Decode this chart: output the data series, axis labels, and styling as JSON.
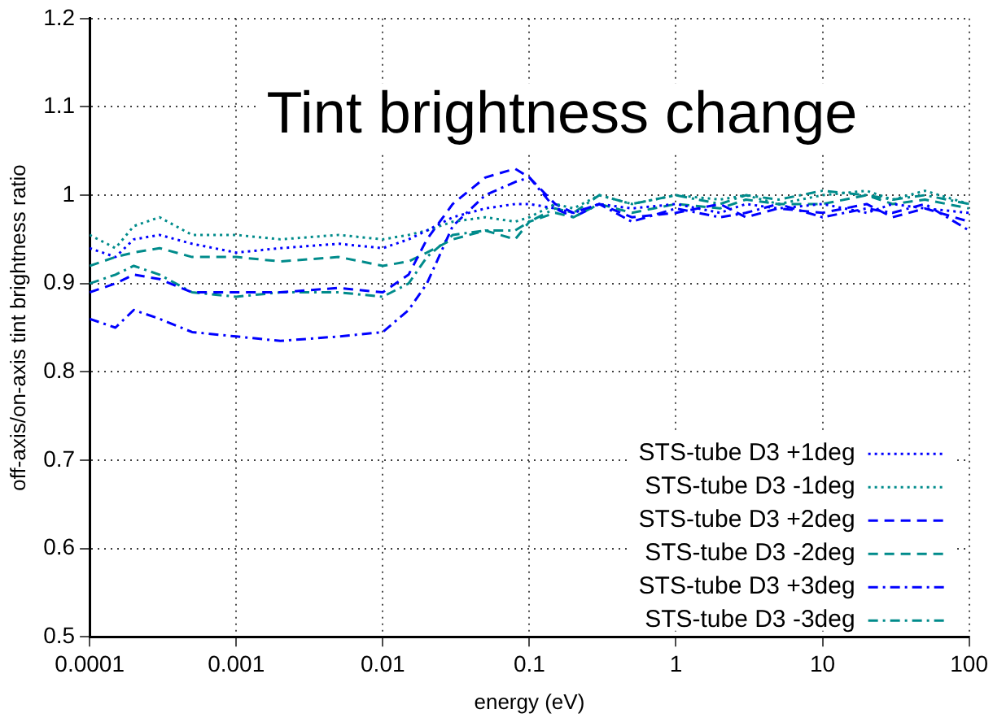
{
  "chart_data": {
    "type": "line",
    "title": "Tint brightness change",
    "xlabel": "energy (eV)",
    "ylabel": "off-axis/on-axis tint brightness ratio",
    "x": [
      0.0001,
      0.00015,
      0.0002,
      0.0003,
      0.0005,
      0.001,
      0.002,
      0.005,
      0.01,
      0.015,
      0.02,
      0.03,
      0.05,
      0.08,
      0.1,
      0.15,
      0.2,
      0.3,
      0.5,
      1,
      2,
      3,
      5,
      10,
      20,
      30,
      50,
      100
    ],
    "series": [
      {
        "name": "STS-tube D3 +1deg",
        "color": "#0000ff",
        "line_style": "dotted",
        "values": [
          0.94,
          0.93,
          0.95,
          0.955,
          0.945,
          0.935,
          0.94,
          0.945,
          0.94,
          0.95,
          0.96,
          0.975,
          0.985,
          0.99,
          0.99,
          0.985,
          0.98,
          0.99,
          0.985,
          0.99,
          0.98,
          0.99,
          0.985,
          0.99,
          0.98,
          0.99,
          0.985,
          0.98
        ]
      },
      {
        "name": "STS-tube D3 -1deg",
        "color": "#008b8b",
        "line_style": "dotted",
        "values": [
          0.955,
          0.94,
          0.965,
          0.975,
          0.955,
          0.955,
          0.95,
          0.955,
          0.95,
          0.955,
          0.96,
          0.97,
          0.975,
          0.97,
          0.975,
          0.99,
          0.985,
          1.0,
          0.99,
          1.0,
          0.995,
          1.0,
          0.99,
          1.0,
          1.005,
          0.995,
          1.005,
          0.99
        ]
      },
      {
        "name": "STS-tube D3 +2deg",
        "color": "#0000ff",
        "line_style": "dashed",
        "values": [
          0.89,
          0.9,
          0.91,
          0.905,
          0.89,
          0.89,
          0.89,
          0.895,
          0.89,
          0.91,
          0.95,
          0.99,
          1.02,
          1.03,
          1.02,
          0.99,
          0.98,
          0.99,
          0.975,
          0.98,
          0.99,
          0.975,
          0.985,
          0.98,
          0.99,
          0.975,
          0.985,
          0.97
        ]
      },
      {
        "name": "STS-tube D3 -2deg",
        "color": "#008b8b",
        "line_style": "dashed",
        "values": [
          0.92,
          0.93,
          0.935,
          0.94,
          0.93,
          0.93,
          0.925,
          0.93,
          0.92,
          0.925,
          0.935,
          0.95,
          0.96,
          0.95,
          0.97,
          0.98,
          0.975,
          0.99,
          0.98,
          0.99,
          0.985,
          0.995,
          0.99,
          0.99,
          1.0,
          0.99,
          0.995,
          0.985
        ]
      },
      {
        "name": "STS-tube D3 +3deg",
        "color": "#0000ff",
        "line_style": "dashdot",
        "values": [
          0.86,
          0.85,
          0.87,
          0.86,
          0.845,
          0.84,
          0.835,
          0.84,
          0.845,
          0.87,
          0.9,
          0.965,
          1.0,
          1.015,
          1.02,
          0.985,
          0.975,
          0.99,
          0.97,
          0.985,
          0.975,
          0.98,
          0.99,
          0.975,
          0.985,
          0.98,
          0.99,
          0.96
        ]
      },
      {
        "name": "STS-tube D3 -3deg",
        "color": "#008b8b",
        "line_style": "dashdot",
        "values": [
          0.9,
          0.91,
          0.92,
          0.91,
          0.89,
          0.885,
          0.89,
          0.89,
          0.885,
          0.9,
          0.93,
          0.955,
          0.96,
          0.96,
          0.97,
          0.985,
          0.98,
          1.0,
          0.99,
          1.0,
          0.99,
          1.0,
          0.995,
          1.005,
          1.0,
          0.995,
          1.0,
          0.99
        ]
      }
    ],
    "log": "x",
    "xlim": [
      0.0001,
      100
    ],
    "xticks": [
      0.0001,
      0.001,
      0.01,
      0.1,
      1,
      10,
      100
    ],
    "ylim": [
      0.5,
      1.2
    ],
    "yticks": [
      0.5,
      0.6,
      0.7,
      0.8,
      0.9,
      1,
      1.1,
      1.2
    ],
    "grid": true,
    "legend": "bottom right",
    "marker": "none"
  }
}
